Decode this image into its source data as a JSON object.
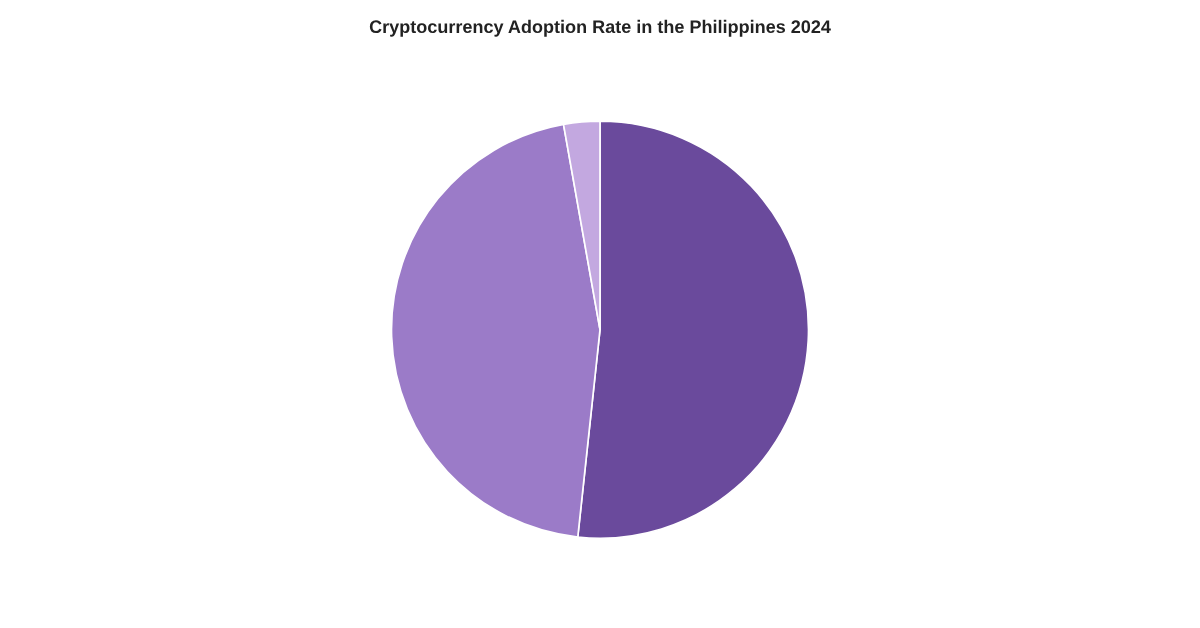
{
  "chart_data": {
    "type": "pie",
    "title": "Cryptocurrency Adoption Rate in the Philippines 2024",
    "categories": [
      null,
      null,
      null
    ],
    "values": [
      51.7,
      45.5,
      2.8
    ],
    "colors": [
      "#6a4a9c",
      "#9b7bc8",
      "#c3a8e0"
    ]
  }
}
